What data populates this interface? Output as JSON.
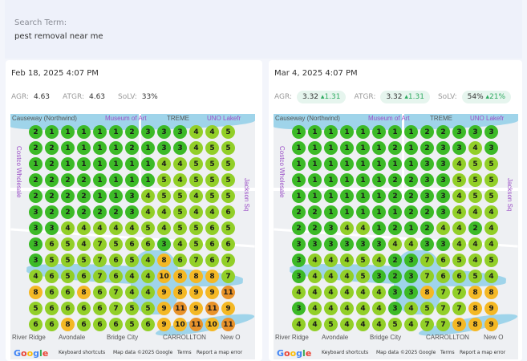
{
  "search": {
    "label": "Search Term:",
    "value": "pest removal near me"
  },
  "colors": {
    "low": "#3cba27",
    "mid": "#92cf28",
    "high": "#f4b825",
    "top": "#e8922a"
  },
  "map": {
    "labels": [
      "UNO Lakefr",
      "Causeway (Northwind)",
      "Museum of Art",
      "Costco Wholesale",
      "River Ridge",
      "New O",
      "Jackson Sq",
      "CARROLLTON",
      "Bridge City",
      "Avondale",
      "TREME"
    ],
    "footer": {
      "logo": "Google",
      "shortcuts": "Keyboard shortcuts",
      "data": "Map data ©2025 Google",
      "terms": "Terms",
      "report": "Report a map error"
    }
  },
  "reports": [
    {
      "date": "Feb 18, 2025 4:07 PM",
      "metrics": [
        {
          "key": "AGR:",
          "value": "4.63",
          "delta": ""
        },
        {
          "key": "ATGR:",
          "value": "4.63",
          "delta": ""
        },
        {
          "key": "SoLV:",
          "value": "33%",
          "delta": ""
        }
      ],
      "grid": [
        [
          2,
          1,
          1,
          1,
          1,
          1,
          2,
          3,
          3,
          3,
          4,
          4,
          5
        ],
        [
          2,
          2,
          1,
          1,
          1,
          1,
          2,
          1,
          3,
          3,
          4,
          5,
          5
        ],
        [
          1,
          2,
          1,
          1,
          1,
          1,
          1,
          1,
          4,
          4,
          5,
          5,
          5
        ],
        [
          2,
          2,
          2,
          2,
          1,
          1,
          1,
          1,
          5,
          4,
          5,
          5,
          5
        ],
        [
          2,
          2,
          2,
          2,
          1,
          1,
          3,
          4,
          5,
          5,
          4,
          5,
          5
        ],
        [
          3,
          2,
          2,
          2,
          2,
          2,
          3,
          4,
          4,
          5,
          4,
          4,
          6
        ],
        [
          3,
          3,
          4,
          4,
          4,
          4,
          4,
          5,
          4,
          5,
          5,
          6,
          5
        ],
        [
          3,
          6,
          5,
          4,
          7,
          5,
          6,
          6,
          3,
          4,
          5,
          6,
          6
        ],
        [
          3,
          5,
          5,
          5,
          7,
          6,
          5,
          4,
          8,
          6,
          7,
          6,
          7
        ],
        [
          4,
          6,
          5,
          6,
          7,
          6,
          4,
          4,
          10,
          8,
          8,
          8,
          7
        ],
        [
          8,
          6,
          6,
          8,
          6,
          7,
          4,
          4,
          9,
          8,
          9,
          9,
          11
        ],
        [
          5,
          6,
          6,
          6,
          6,
          7,
          5,
          5,
          9,
          11,
          9,
          11,
          9
        ],
        [
          6,
          6,
          8,
          6,
          6,
          6,
          5,
          6,
          9,
          10,
          11,
          10,
          11
        ]
      ]
    },
    {
      "date": "Mar 4, 2025 4:07 PM",
      "metrics": [
        {
          "key": "AGR:",
          "value": "3.32",
          "delta": "1.31"
        },
        {
          "key": "ATGR:",
          "value": "3.32",
          "delta": "1.31"
        },
        {
          "key": "SoLV:",
          "value": "54%",
          "delta": "21%"
        }
      ],
      "grid": [
        [
          1,
          1,
          1,
          1,
          1,
          1,
          1,
          1,
          2,
          2,
          3,
          3,
          3
        ],
        [
          1,
          1,
          1,
          1,
          1,
          1,
          2,
          1,
          2,
          3,
          3,
          4,
          3
        ],
        [
          1,
          1,
          1,
          1,
          1,
          1,
          1,
          1,
          3,
          3,
          4,
          5,
          5
        ],
        [
          1,
          1,
          1,
          1,
          1,
          1,
          2,
          2,
          3,
          3,
          5,
          5,
          5
        ],
        [
          1,
          1,
          1,
          1,
          1,
          1,
          2,
          2,
          3,
          3,
          4,
          5,
          5
        ],
        [
          2,
          2,
          1,
          1,
          1,
          1,
          1,
          2,
          2,
          3,
          4,
          4,
          4
        ],
        [
          2,
          2,
          3,
          4,
          4,
          1,
          2,
          1,
          2,
          4,
          4,
          2,
          4
        ],
        [
          3,
          3,
          3,
          3,
          3,
          3,
          4,
          4,
          3,
          3,
          4,
          4,
          4
        ],
        [
          3,
          4,
          4,
          4,
          5,
          4,
          2,
          3,
          7,
          6,
          5,
          4,
          5
        ],
        [
          3,
          4,
          4,
          4,
          5,
          3,
          2,
          3,
          7,
          6,
          6,
          5,
          4
        ],
        [
          4,
          4,
          4,
          4,
          4,
          4,
          3,
          3,
          8,
          7,
          7,
          8,
          8
        ],
        [
          3,
          4,
          4,
          4,
          4,
          4,
          3,
          4,
          5,
          7,
          7,
          8,
          9
        ],
        [
          4,
          4,
          5,
          4,
          4,
          4,
          5,
          4,
          7,
          7,
          9,
          8,
          9
        ]
      ]
    }
  ]
}
